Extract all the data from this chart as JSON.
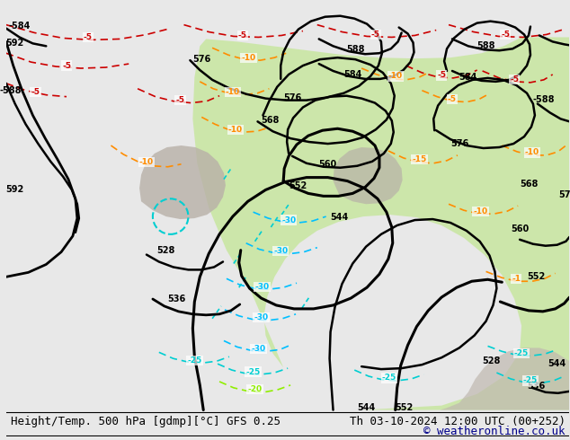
{
  "title_left": "Height/Temp. 500 hPa [gdmp][°C] GFS 0.25",
  "title_right": "Th 03-10-2024 12:00 UTC (00+252)",
  "copyright": "© weatheronline.co.uk",
  "bg_color": "#e8e8e8",
  "land_green_color": "#c8e6a0",
  "land_gray_color": "#b8b0a8",
  "font_size_bottom": 9,
  "font_size_labels": 7.5
}
